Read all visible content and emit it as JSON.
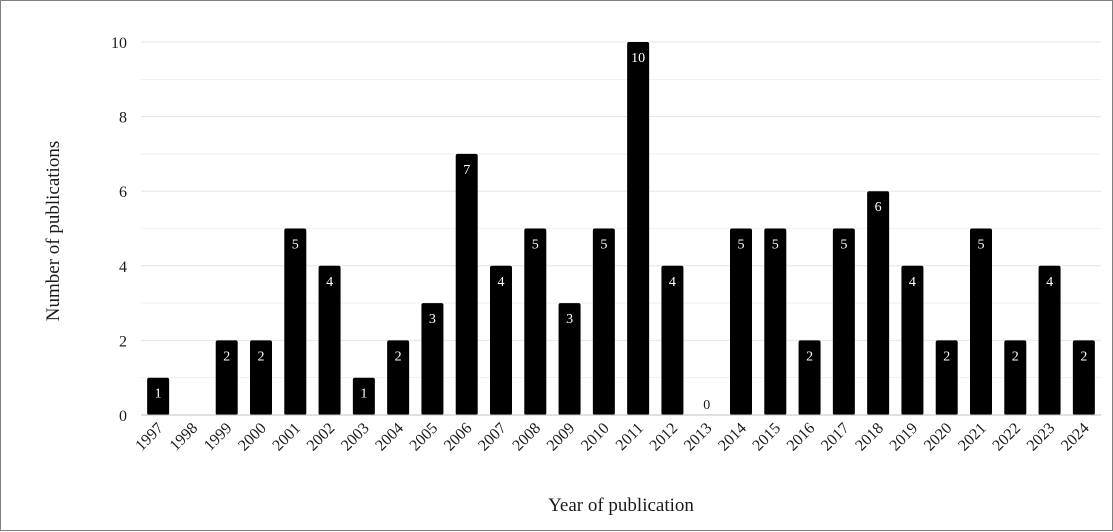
{
  "chart_data": {
    "type": "bar",
    "categories": [
      "1997",
      "1998",
      "1999",
      "2000",
      "2001",
      "2002",
      "2003",
      "2004",
      "2005",
      "2006",
      "2007",
      "2008",
      "2009",
      "2010",
      "2011",
      "2012",
      "2013",
      "2014",
      "2015",
      "2016",
      "2017",
      "2018",
      "2019",
      "2020",
      "2021",
      "2022",
      "2023",
      "2024"
    ],
    "values": [
      1,
      0,
      2,
      2,
      5,
      4,
      1,
      2,
      3,
      7,
      4,
      5,
      3,
      5,
      10,
      4,
      0,
      5,
      5,
      2,
      5,
      6,
      4,
      2,
      5,
      2,
      4,
      2
    ],
    "data_labels": [
      "1",
      "",
      "2",
      "2",
      "5",
      "4",
      "1",
      "2",
      "3",
      "7",
      "4",
      "5",
      "3",
      "5",
      "10",
      "4",
      "0",
      "5",
      "5",
      "2",
      "5",
      "6",
      "4",
      "2",
      "5",
      "2",
      "4",
      "2"
    ],
    "title": "",
    "xlabel": "Year of publication",
    "ylabel": "Number of publications",
    "ylim": [
      0,
      10
    ],
    "yticks": [
      "0",
      "2",
      "4",
      "6",
      "8",
      "10"
    ],
    "grid": true,
    "colors": {
      "bar": "#000000",
      "label_inside": "#ffffff",
      "label_outside": "#1a1a1a",
      "grid": "#e6e6e6"
    }
  }
}
